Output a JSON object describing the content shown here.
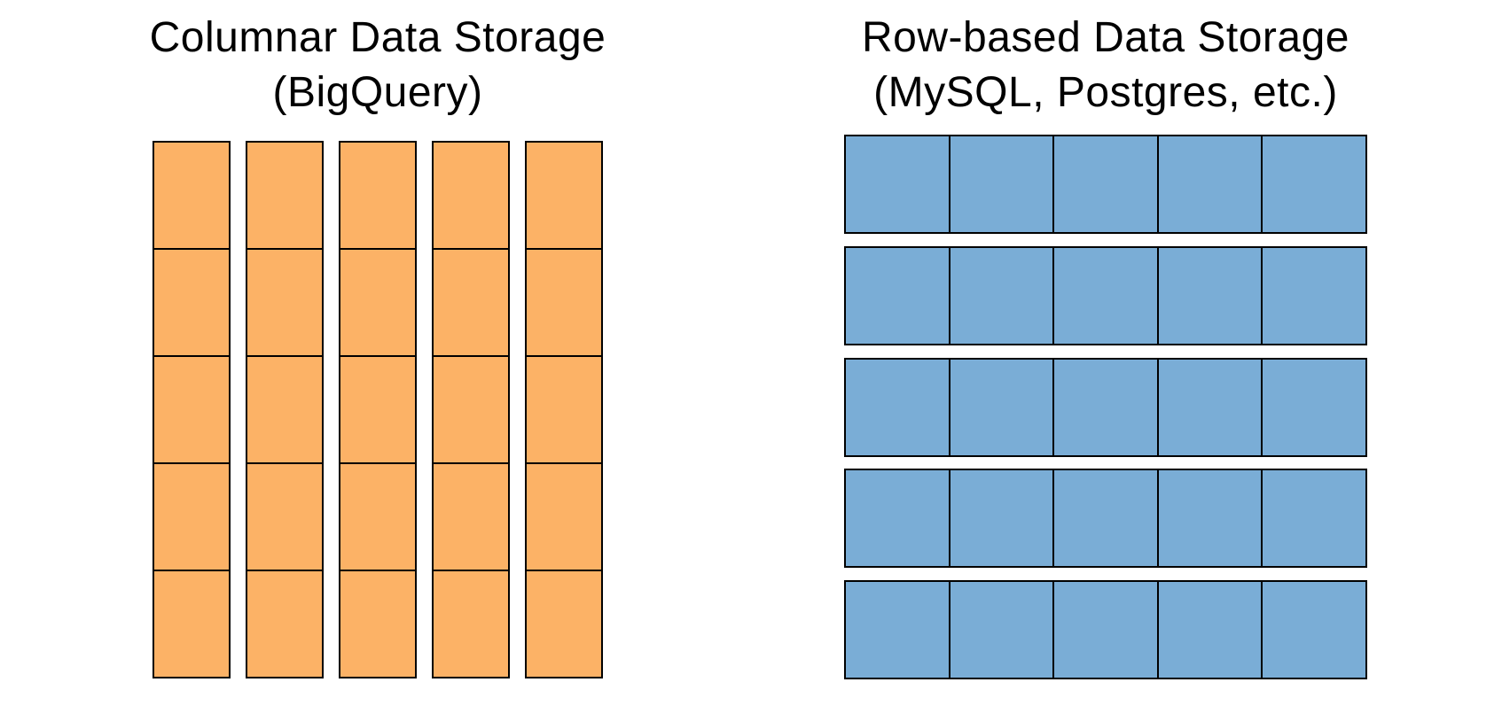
{
  "canvas": {
    "background": "#FFFFFF",
    "text_color": "#000000"
  },
  "panels": {
    "columnar": {
      "title_line1": "Columnar Data Storage",
      "title_line2": "(BigQuery)",
      "layout": "columns",
      "num_columns": 5,
      "cells_per_column": 5,
      "cell_fill": "#FCB266",
      "border_color": "#000000"
    },
    "row_based": {
      "title_line1": "Row-based Data Storage",
      "title_line2": "(MySQL, Postgres, etc.)",
      "layout": "rows",
      "num_rows": 5,
      "cells_per_row": 5,
      "cell_fill": "#7AADD6",
      "border_color": "#000000"
    }
  }
}
